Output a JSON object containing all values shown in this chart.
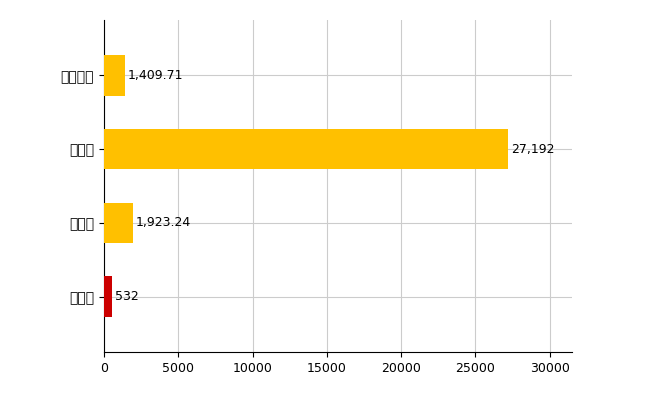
{
  "categories": [
    "水巻町",
    "県平均",
    "県最大",
    "全国平均"
  ],
  "values": [
    532,
    1923.24,
    27192,
    1409.71
  ],
  "bar_colors": [
    "#cc0000",
    "#ffc000",
    "#ffc000",
    "#ffc000"
  ],
  "value_labels": [
    "532",
    "1,923.24",
    "27,192",
    "1,409.71"
  ],
  "xlim": [
    0,
    31500
  ],
  "xticks": [
    0,
    5000,
    10000,
    15000,
    20000,
    25000,
    30000
  ],
  "xtick_labels": [
    "0",
    "5000",
    "10000",
    "15000",
    "20000",
    "25000",
    "30000"
  ],
  "grid_color": "#cccccc",
  "background_color": "#ffffff",
  "label_fontsize": 10,
  "tick_fontsize": 9,
  "value_label_fontsize": 9,
  "bar_height": 0.55
}
